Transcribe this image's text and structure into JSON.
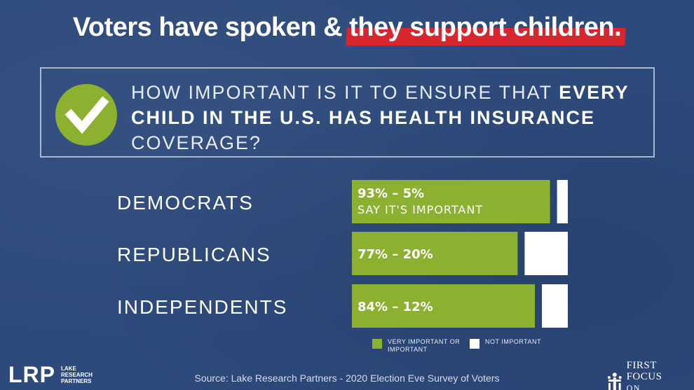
{
  "headline": {
    "part1": "Voters have spoken & ",
    "part2": "they support children."
  },
  "question": {
    "line_a": "How important is it to ensure that ",
    "line_b": "every child in the U.S. has health insurance",
    "line_c": " coverage?"
  },
  "chart_data": {
    "type": "bar",
    "orientation": "horizontal",
    "stacked": false,
    "categories": [
      "DEMOCRATS",
      "REPUBLICANS",
      "INDEPENDENTS"
    ],
    "series": [
      {
        "name": "VERY IMPORTANT OR IMPORTANT",
        "values": [
          93,
          77,
          84
        ]
      },
      {
        "name": "NOT IMPORTANT",
        "values": [
          5,
          20,
          12
        ]
      }
    ],
    "data_labels": [
      "93% – 5%",
      "77% – 20%",
      "84% – 12%"
    ],
    "sub_label": "SAY IT'S IMPORTANT",
    "xlim": [
      0,
      100
    ]
  },
  "colors": {
    "important": "#8cb02f",
    "not_important": "#ffffff"
  },
  "legend": {
    "important": "VERY IMPORTANT OR IMPORTANT",
    "not_important": "NOT IMPORTANT"
  },
  "source": "Source: Lake Research Partners - 2020 Election Eve Survey of Voters",
  "logos": {
    "lrp_mark": "LRP",
    "lrp_words": [
      "LAKE",
      "RESEARCH",
      "PARTNERS"
    ],
    "ffc_line1": "First Focus",
    "ffc_line2": "on Children"
  }
}
